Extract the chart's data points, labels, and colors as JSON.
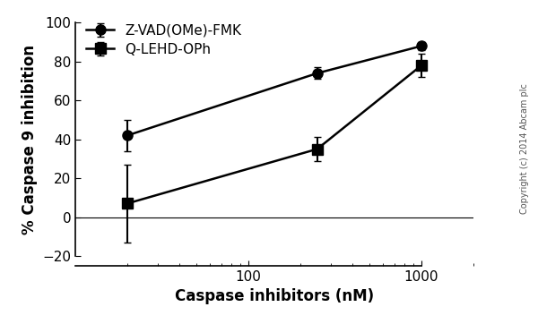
{
  "series1_name": "Z-VAD(OMe)-FMK",
  "series1_x": [
    20,
    250,
    1000
  ],
  "series1_y": [
    42,
    74,
    88
  ],
  "series1_yerr": [
    8,
    3,
    2
  ],
  "series1_marker": "o",
  "series2_name": "Q-LEHD-OPh",
  "series2_x": [
    20,
    250,
    1000
  ],
  "series2_y": [
    7,
    35,
    78
  ],
  "series2_yerr": [
    20,
    6,
    6
  ],
  "series2_marker": "s",
  "xlabel": "Caspase inhibitors (nM)",
  "ylabel": "% Caspase 9 inhibition",
  "xlim": [
    10,
    2000
  ],
  "ylim": [
    -25,
    105
  ],
  "yticks": [
    -20,
    0,
    20,
    40,
    60,
    80,
    100
  ],
  "line_color": "#000000",
  "marker_size": 8,
  "line_width": 1.8,
  "capsize": 3,
  "elinewidth": 1.5,
  "copyright_text": "Copyright (c) 2014 Abcam plc",
  "background_color": "#ffffff",
  "label_fontsize": 12,
  "tick_fontsize": 11,
  "legend_fontsize": 11
}
